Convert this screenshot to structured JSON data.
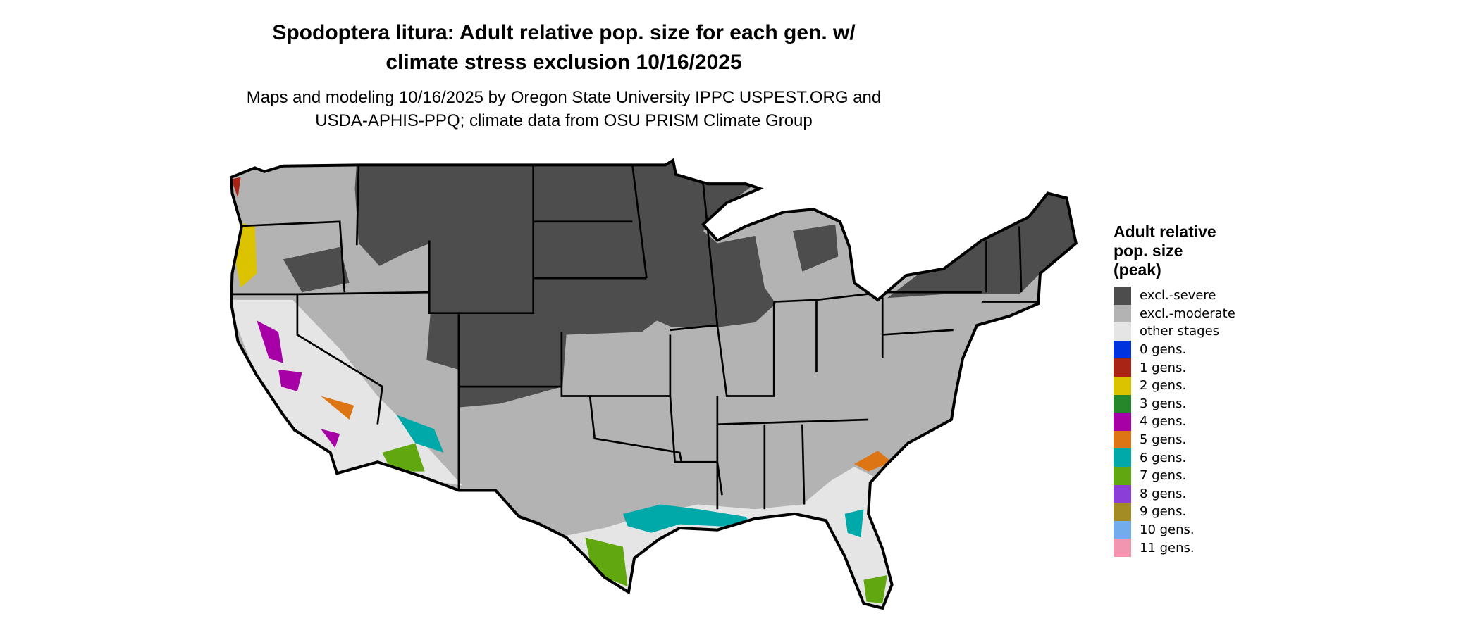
{
  "title": "Spodoptera litura: Adult relative pop. size for each gen. w/\nclimate stress exclusion 10/16/2025",
  "title_lines": [
    "Spodoptera litura: Adult relative pop. size for each gen. w/",
    "climate stress exclusion 10/16/2025"
  ],
  "subtitle_lines": [
    "Maps and modeling 10/16/2025 by Oregon State University IPPC USPEST.ORG and",
    "USDA-APHIS-PPQ; climate data from OSU PRISM Climate Group"
  ],
  "legend": {
    "title_lines": [
      "Adult relative",
      "pop. size",
      "(peak)"
    ],
    "items": [
      {
        "label": "excl.-severe",
        "color": "#4d4d4d"
      },
      {
        "label": "excl.-moderate",
        "color": "#b3b3b3"
      },
      {
        "label": "other stages",
        "color": "#e5e5e5"
      },
      {
        "label": "0 gens.",
        "color": "#0033dd"
      },
      {
        "label": "1 gens.",
        "color": "#aa2416"
      },
      {
        "label": "2 gens.",
        "color": "#dcc300"
      },
      {
        "label": "3 gens.",
        "color": "#26862a"
      },
      {
        "label": "4 gens.",
        "color": "#a600a6"
      },
      {
        "label": "5 gens.",
        "color": "#dd7514"
      },
      {
        "label": "6 gens.",
        "color": "#00a9a9"
      },
      {
        "label": "7 gens.",
        "color": "#61a70f"
      },
      {
        "label": "8 gens.",
        "color": "#8b3fd8"
      },
      {
        "label": "9 gens.",
        "color": "#a38c24"
      },
      {
        "label": "10 gens.",
        "color": "#72acec"
      },
      {
        "label": "11 gens.",
        "color": "#f295b0"
      }
    ]
  }
}
